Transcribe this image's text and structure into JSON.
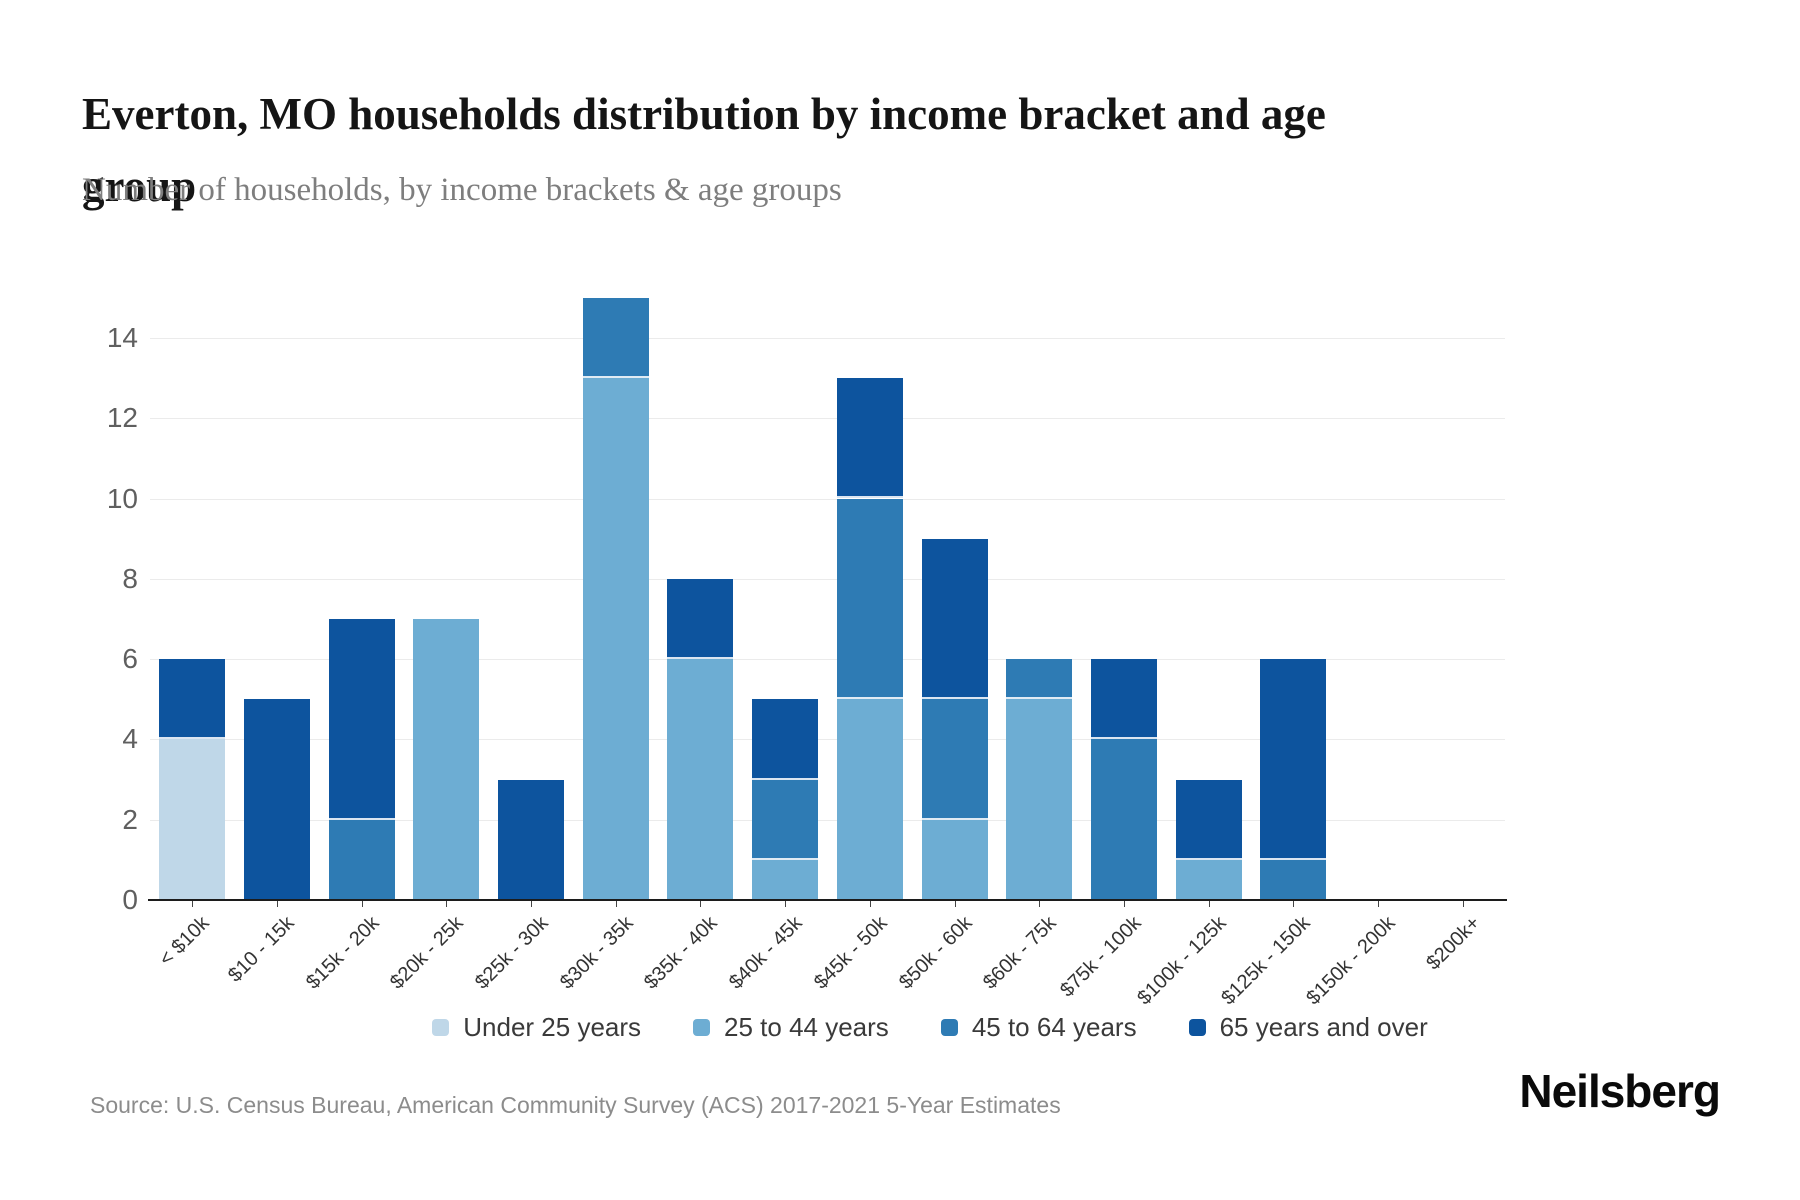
{
  "header": {
    "title": "Everton, MO households distribution by income bracket and age group",
    "subtitle": "Number of households, by income brackets & age groups"
  },
  "chart_data": {
    "type": "bar",
    "stacked": true,
    "title": "Everton, MO households distribution by income bracket and age group",
    "xlabel": "",
    "ylabel": "",
    "ylim": [
      0,
      15
    ],
    "yticks": [
      0,
      2,
      4,
      6,
      8,
      10,
      12,
      14
    ],
    "grid": true,
    "legend_position": "bottom",
    "categories": [
      "< $10k",
      "$10 - 15k",
      "$15k - 20k",
      "$20k - 25k",
      "$25k - 30k",
      "$30k - 35k",
      "$35k - 40k",
      "$40k - 45k",
      "$45k - 50k",
      "$50k - 60k",
      "$60k - 75k",
      "$75k - 100k",
      "$100k - 125k",
      "$125k - 150k",
      "$150k - 200k",
      "$200k+"
    ],
    "series": [
      {
        "name": "Under 25 years",
        "color": "#bfd7e8",
        "values": [
          4,
          0,
          0,
          0,
          0,
          0,
          0,
          0,
          0,
          0,
          0,
          0,
          0,
          0,
          0,
          0
        ]
      },
      {
        "name": "25 to 44 years",
        "color": "#6dadd3",
        "values": [
          0,
          0,
          0,
          7,
          0,
          13,
          6,
          1,
          5,
          2,
          5,
          0,
          1,
          0,
          0,
          0
        ]
      },
      {
        "name": "45 to 64 years",
        "color": "#2e7bb4",
        "values": [
          0,
          0,
          2,
          0,
          0,
          2,
          0,
          2,
          5,
          3,
          1,
          4,
          0,
          1,
          0,
          0
        ]
      },
      {
        "name": "65 years and over",
        "color": "#0d549e",
        "values": [
          2,
          5,
          5,
          0,
          3,
          0,
          2,
          2,
          3,
          4,
          0,
          2,
          2,
          5,
          0,
          0
        ]
      }
    ],
    "totals": [
      6,
      5,
      7,
      7,
      3,
      15,
      8,
      5,
      13,
      9,
      6,
      6,
      3,
      6,
      0,
      0
    ]
  },
  "footer": {
    "source": "Source: U.S. Census Bureau, American Community Survey (ACS) 2017-2021 5-Year Estimates",
    "logo": "Neilsberg"
  }
}
